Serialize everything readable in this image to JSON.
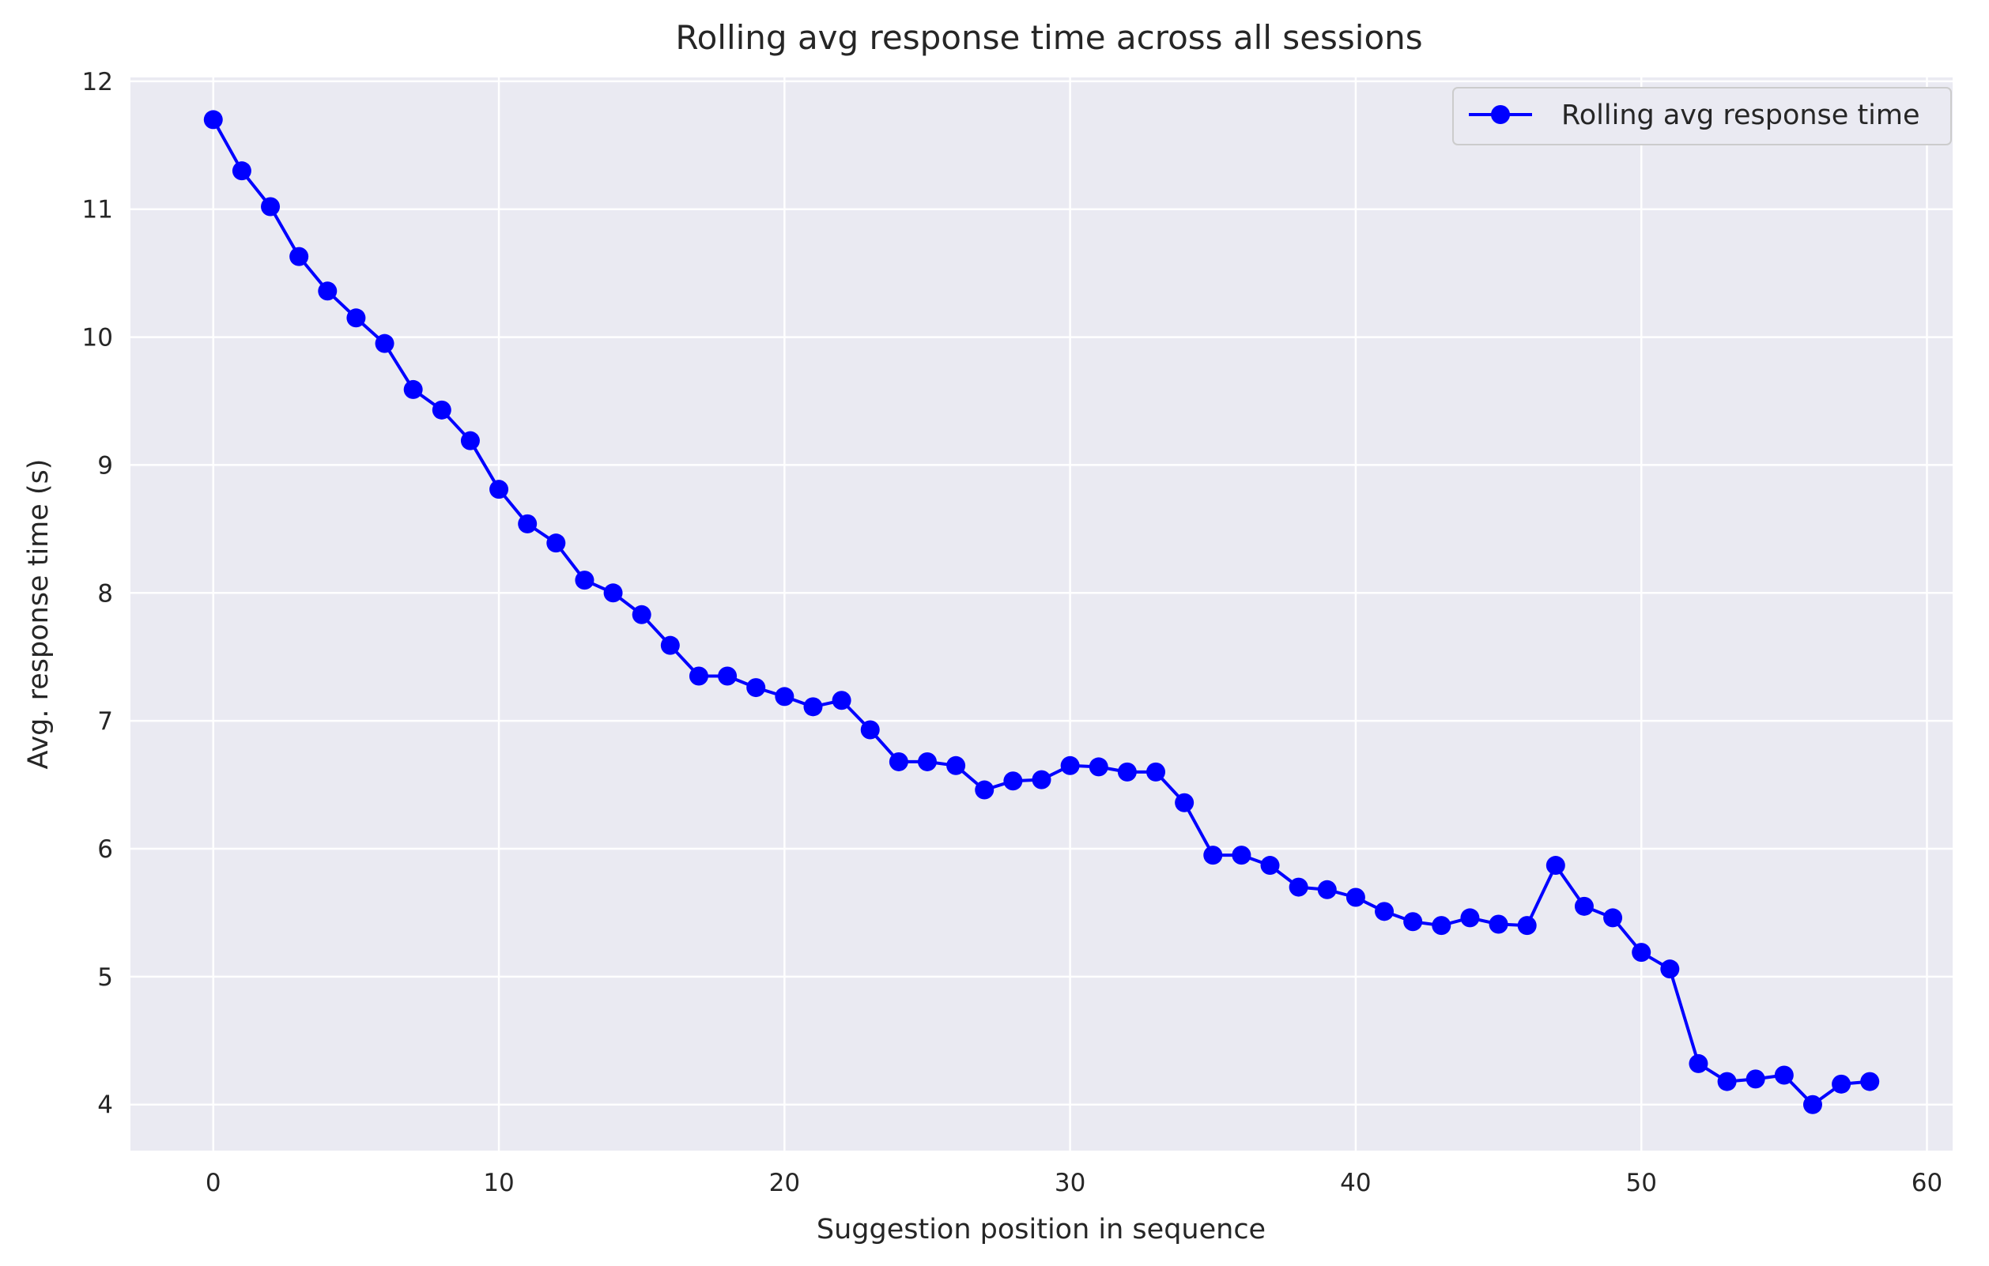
{
  "colors": {
    "plot_background": "#EAEAF2",
    "grid": "#FFFFFF",
    "series": "#0000FF",
    "text": "#262626"
  },
  "chart_data": {
    "type": "line",
    "title": "Rolling avg response time across all sessions",
    "xlabel": "Suggestion position in sequence",
    "ylabel": "Avg. response time (s)",
    "xlim": [
      -2.9,
      60.9
    ],
    "ylim": [
      3.64,
      12.03
    ],
    "xticks": [
      0,
      10,
      20,
      30,
      40,
      50,
      60
    ],
    "yticks": [
      4,
      5,
      6,
      7,
      8,
      9,
      10,
      11,
      12
    ],
    "grid": true,
    "legend_position": "top-right",
    "marker": "circle",
    "series": [
      {
        "name": "Rolling avg response time",
        "x": [
          0,
          1,
          2,
          3,
          4,
          5,
          6,
          7,
          8,
          9,
          10,
          11,
          12,
          13,
          14,
          15,
          16,
          17,
          18,
          19,
          20,
          21,
          22,
          23,
          24,
          25,
          26,
          27,
          28,
          29,
          30,
          31,
          32,
          33,
          34,
          35,
          36,
          37,
          38,
          39,
          40,
          41,
          42,
          43,
          44,
          45,
          46,
          47,
          48,
          49,
          50,
          51,
          52,
          53,
          54,
          55,
          56,
          57,
          58
        ],
        "y": [
          11.7,
          11.3,
          11.02,
          10.63,
          10.36,
          10.15,
          9.95,
          9.59,
          9.43,
          9.19,
          8.81,
          8.54,
          8.39,
          8.1,
          8.0,
          7.83,
          7.59,
          7.35,
          7.35,
          7.26,
          7.19,
          7.11,
          7.16,
          6.93,
          6.68,
          6.68,
          6.65,
          6.46,
          6.53,
          6.54,
          6.65,
          6.64,
          6.6,
          6.6,
          6.36,
          5.95,
          5.95,
          5.87,
          5.7,
          5.68,
          5.62,
          5.51,
          5.43,
          5.4,
          5.46,
          5.41,
          5.4,
          5.87,
          5.55,
          5.46,
          5.19,
          5.06,
          4.32,
          4.18,
          4.2,
          4.23,
          4.0,
          4.16,
          4.18
        ]
      }
    ]
  }
}
